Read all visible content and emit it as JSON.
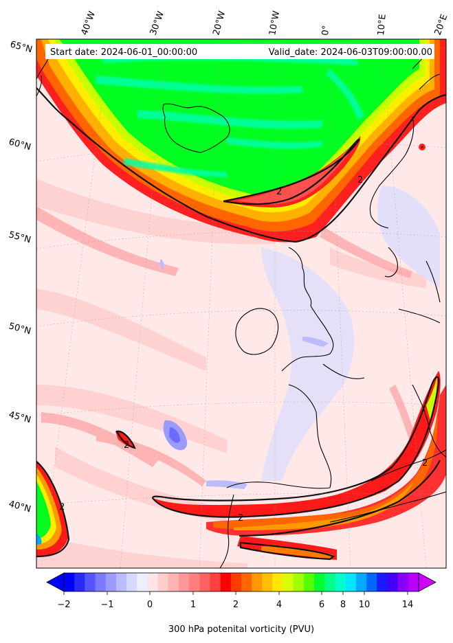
{
  "map": {
    "projection": "conic",
    "region": "North Atlantic / Western Europe",
    "field": "300 hPa potential vorticity",
    "contour_level": 2,
    "contour_label": "2",
    "graticule": "dotted",
    "coastlines": true
  },
  "header": {
    "start_date": "Start date: 2024-06-01_00:00:00",
    "valid_date": "Valid_date: 2024-06-03T09:00:00.00"
  },
  "lon_labels": [
    "40°W",
    "30°W",
    "20°W",
    "10°W",
    "0°",
    "10°E",
    "20°E"
  ],
  "lat_labels": [
    "65°N",
    "60°N",
    "55°N",
    "50°N",
    "45°N",
    "40°N"
  ],
  "colorbar": {
    "label": "300 hPa potenital vorticity (PVU)",
    "ticks": [
      "−2",
      "−1",
      "0",
      "1",
      "2",
      "4",
      "6",
      "8",
      "10",
      "14"
    ],
    "extend": "both",
    "colors": [
      "#0000ff",
      "#2a2aff",
      "#5555ff",
      "#7b7bff",
      "#9a9aff",
      "#bbbbff",
      "#d8d8ff",
      "#eeeeff",
      "#ffe6e6",
      "#ffcccc",
      "#ffb3b3",
      "#ff9999",
      "#ff7f7f",
      "#ff6262",
      "#ff4040",
      "#ff0000",
      "#ff3c00",
      "#ff6600",
      "#ff9900",
      "#ffc000",
      "#ffe800",
      "#d8ff00",
      "#a0ff00",
      "#55ff00",
      "#00ff33",
      "#00ff88",
      "#00ffcc",
      "#00e6ff",
      "#00aaff",
      "#0066ff",
      "#1a1aff",
      "#4400ff",
      "#8800ff",
      "#bb00ff"
    ],
    "under_color": "#0000ff",
    "over_color": "#cc00ff"
  }
}
